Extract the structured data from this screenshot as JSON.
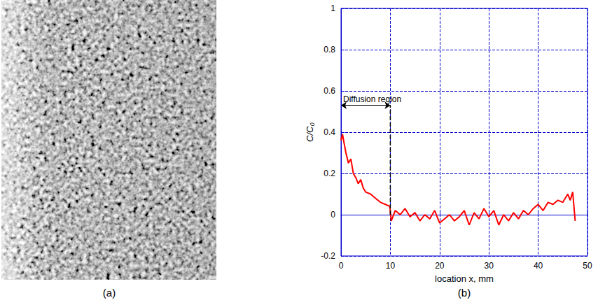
{
  "image_panel": {
    "label": "(a)"
  },
  "chart_data": {
    "type": "line",
    "panel_label": "(b)",
    "x_label": "location x, mm",
    "y_label": "C/C₀",
    "xlim": [
      0,
      50
    ],
    "xticks": [
      0,
      10,
      20,
      30,
      40,
      50
    ],
    "ylim": [
      -0.2,
      1
    ],
    "yticks": [
      -0.2,
      0,
      0.2,
      0.4,
      0.6,
      0.8,
      1
    ],
    "grid": true,
    "color": "#ff0000",
    "annotation": {
      "text": "Diffusion region",
      "x_start": 0,
      "x_end": 10,
      "y": 0.53
    },
    "divider": {
      "x": 10,
      "y": [
        0,
        0.53
      ]
    },
    "x": [
      0,
      0.3,
      0.6,
      1,
      1.5,
      2,
      2.5,
      3,
      3.5,
      4,
      4.5,
      5,
      6,
      7,
      8,
      9,
      9.9,
      10.2,
      11,
      12,
      13,
      14,
      15,
      16,
      17,
      18,
      19,
      20,
      21,
      22,
      23,
      24,
      25,
      26,
      27,
      28,
      29,
      30,
      31,
      32,
      33,
      34,
      35,
      36,
      37,
      38,
      39,
      40,
      41,
      42,
      43,
      44,
      45,
      46,
      46.5,
      47,
      47.5
    ],
    "values": [
      0.36,
      0.39,
      0.35,
      0.3,
      0.25,
      0.27,
      0.2,
      0.18,
      0.15,
      0.17,
      0.13,
      0.11,
      0.1,
      0.08,
      0.06,
      0.05,
      0.04,
      -0.03,
      0.02,
      0.0,
      0.03,
      -0.01,
      0.01,
      -0.03,
      0.0,
      -0.02,
      0.02,
      -0.04,
      -0.02,
      0.0,
      -0.03,
      -0.01,
      0.02,
      -0.05,
      0.01,
      -0.02,
      0.03,
      -0.01,
      0.02,
      -0.05,
      0.0,
      -0.03,
      0.01,
      -0.02,
      0.02,
      0.0,
      0.03,
      0.05,
      0.02,
      0.06,
      0.05,
      0.07,
      0.06,
      0.1,
      0.07,
      0.11,
      -0.03
    ]
  }
}
